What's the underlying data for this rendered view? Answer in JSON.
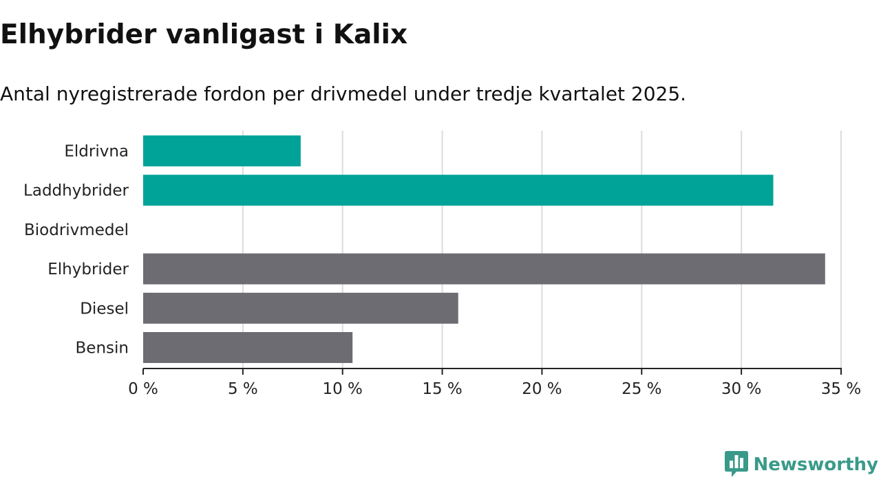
{
  "chart_data": {
    "type": "bar",
    "orientation": "horizontal",
    "title": "Elhybrider vanligast i Kalix",
    "subtitle": "Antal nyregistrerade fordon per drivmedel under tredje kvartalet 2025.",
    "categories": [
      "Eldrivna",
      "Laddhybrider",
      "Biodrivmedel",
      "Elhybrider",
      "Diesel",
      "Bensin"
    ],
    "values": [
      7.9,
      31.6,
      0,
      34.2,
      15.8,
      10.5
    ],
    "bar_colors": [
      "#00a398",
      "#00a398",
      "#00a398",
      "#6d6c72",
      "#6d6c72",
      "#6d6c72"
    ],
    "xlabel": "",
    "ylabel": "",
    "xlim": [
      0,
      35
    ],
    "x_ticks": [
      0,
      5,
      10,
      15,
      20,
      25,
      30,
      35
    ],
    "x_tick_labels": [
      "0 %",
      "5 %",
      "10 %",
      "15 %",
      "20 %",
      "25 %",
      "30 %",
      "35 %"
    ],
    "grid": true,
    "legend": "none"
  },
  "branding": {
    "name": "Newsworthy",
    "color": "#3a9a8a",
    "logo_icon": "newsworthy-logo-icon"
  }
}
